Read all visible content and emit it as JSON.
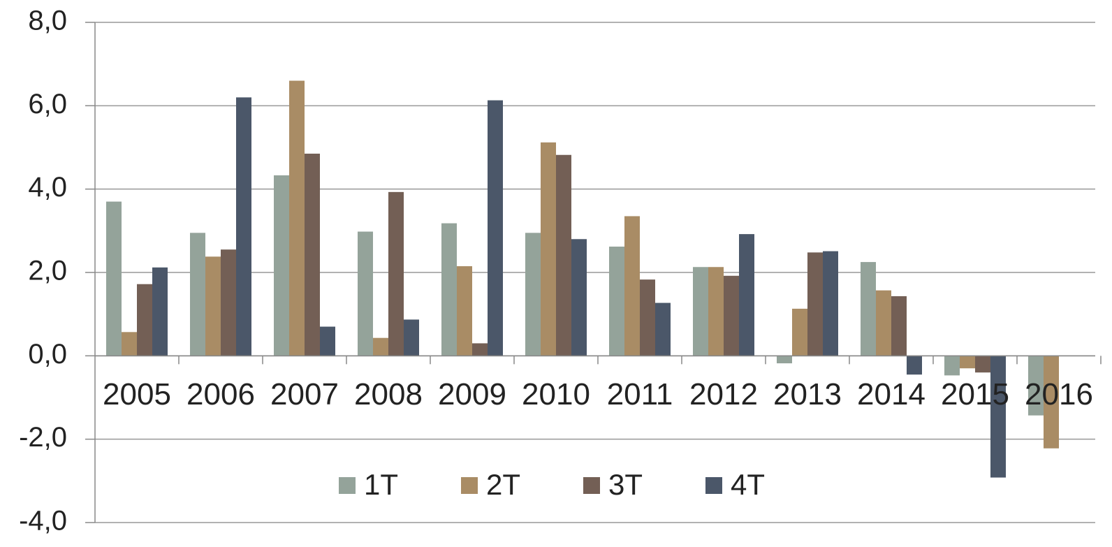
{
  "chart_data": {
    "type": "bar",
    "categories": [
      "2005",
      "2006",
      "2007",
      "2008",
      "2009",
      "2010",
      "2011",
      "2012",
      "2013",
      "2014",
      "2015",
      "2016"
    ],
    "series": [
      {
        "name": "1T",
        "color": "#94a39a",
        "values": [
          3.7,
          2.95,
          4.33,
          2.98,
          3.18,
          2.95,
          2.62,
          2.13,
          -0.18,
          2.25,
          -0.47,
          -1.43
        ]
      },
      {
        "name": "2T",
        "color": "#a98c65",
        "values": [
          0.57,
          2.38,
          6.6,
          0.43,
          2.15,
          5.12,
          3.35,
          2.13,
          1.13,
          1.57,
          -0.3,
          -2.22
        ]
      },
      {
        "name": "3T",
        "color": "#735f55",
        "values": [
          1.72,
          2.55,
          4.85,
          3.93,
          0.3,
          4.82,
          1.83,
          1.92,
          2.48,
          1.43,
          -0.4,
          null
        ]
      },
      {
        "name": "4T",
        "color": "#4b5769",
        "values": [
          2.12,
          6.2,
          0.7,
          0.87,
          6.13,
          2.8,
          1.27,
          2.92,
          2.51,
          -0.45,
          -2.92,
          null
        ]
      }
    ],
    "ylim": [
      -4,
      8
    ],
    "yticks": [
      {
        "value": -4,
        "label": "-4,0"
      },
      {
        "value": -2,
        "label": "-2,0"
      },
      {
        "value": 0,
        "label": "0,0"
      },
      {
        "value": 2,
        "label": "2,0"
      },
      {
        "value": 4,
        "label": "4,0"
      },
      {
        "value": 6,
        "label": "6,0"
      },
      {
        "value": 8,
        "label": "8,0"
      }
    ],
    "grid": true,
    "legend": "bottom"
  }
}
